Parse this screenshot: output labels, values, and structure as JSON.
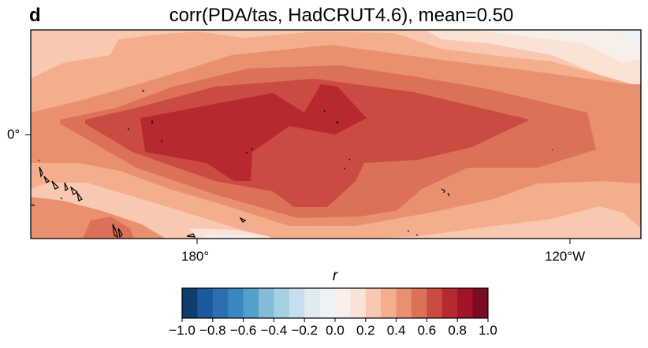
{
  "panel_label": "d",
  "title": "corr(PDA/tas, HadCRUT4.6), mean=0.50",
  "chart_data": {
    "type": "heatmap",
    "projection": "map",
    "title": "corr(PDA/tas, HadCRUT4.6), mean=0.50",
    "x_ticks": [
      {
        "value": 180,
        "label": "180°"
      },
      {
        "value": -120,
        "label": "120°W"
      }
    ],
    "y_ticks": [
      {
        "value": 0,
        "label": "0°"
      }
    ],
    "colorbar": {
      "label": "r",
      "range": [
        -1.0,
        1.0
      ],
      "levels": [
        -1.0,
        -0.9,
        -0.8,
        -0.7,
        -0.6,
        -0.5,
        -0.4,
        -0.3,
        -0.2,
        -0.1,
        0.0,
        0.1,
        0.2,
        0.3,
        0.4,
        0.5,
        0.6,
        0.7,
        0.8,
        0.9,
        1.0
      ],
      "tick_labels": [
        "−1.0",
        "−0.8",
        "−0.6",
        "−0.4",
        "−0.2",
        "0.0",
        "0.2",
        "0.4",
        "0.6",
        "0.8",
        "1.0"
      ],
      "colors": [
        "#0e3d70",
        "#1b5a9c",
        "#2c6fb0",
        "#3b88c0",
        "#559fcb",
        "#83bbd9",
        "#a7cfe4",
        "#c6dfec",
        "#dfeaf1",
        "#edf2f4",
        "#f8efeb",
        "#fbe2d6",
        "#f9c8b0",
        "#f4ad8d",
        "#e8906f",
        "#dc7058",
        "#c94b42",
        "#b8292f",
        "#a11427",
        "#7b0a23"
      ],
      "colormap": "RdBu_r"
    }
  }
}
